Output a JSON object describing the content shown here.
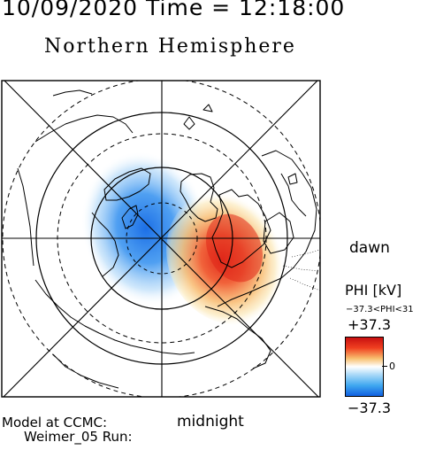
{
  "header": {
    "date_time": "10/09/2020 Time = 12:18:00",
    "title": "Northern Hemisphere"
  },
  "map": {
    "projection": "polar stereographic, north pole centered",
    "orientation": {
      "right": "dawn",
      "bottom": "midnight"
    },
    "label_dawn": "dawn",
    "label_midnight": "midnight",
    "grid": {
      "latitude_circles": "dashed and solid",
      "meridians": true,
      "coastlines": true
    },
    "potential_cells": [
      {
        "name": "negative cell",
        "sign": "negative",
        "location": "pre-noon / upper-left of pole",
        "color": "#1c6fe6"
      },
      {
        "name": "positive cell",
        "sign": "positive",
        "location": "dawn-midnight / lower-right of pole",
        "color": "#e0281a"
      }
    ]
  },
  "colorbar": {
    "title": "PHI [kV]",
    "range_label": "−37.3<PHI<31",
    "max_label": "+37.3",
    "zero_label": "0",
    "min_label": "−37.3",
    "unit": "kV",
    "max": 37.3,
    "min": -37.3,
    "colors": {
      "positive": "#c81010",
      "zero": "#ffffff",
      "negative": "#1060e0"
    }
  },
  "footer": {
    "model_label": "Model at CCMC:",
    "run_label": "Weimer_05 Run:"
  }
}
